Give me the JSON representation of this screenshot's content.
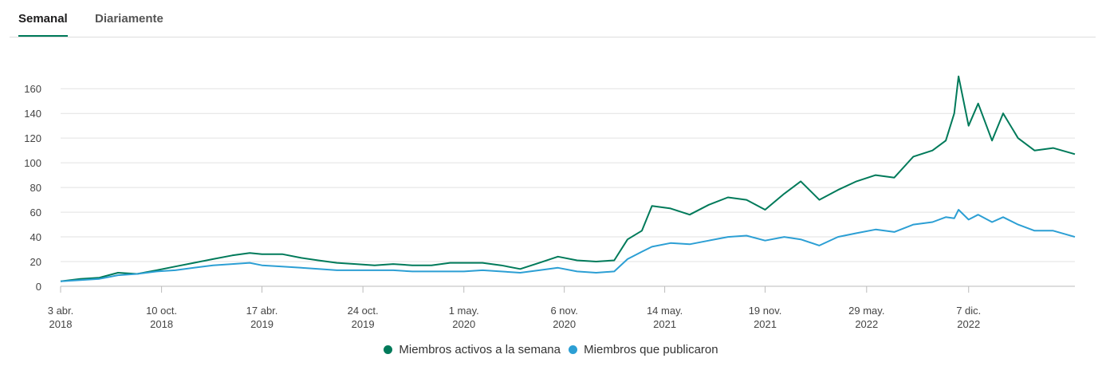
{
  "tabs": [
    {
      "label": "Semanal",
      "active": true
    },
    {
      "label": "Diariamente",
      "active": false
    }
  ],
  "chart_data": {
    "type": "line",
    "title": "",
    "xlabel": "",
    "ylabel": "",
    "ylim": [
      0,
      175
    ],
    "yticks": [
      0,
      20,
      40,
      60,
      80,
      100,
      120,
      140,
      160
    ],
    "xlim": [
      "2018-04-03",
      "2023-06-25"
    ],
    "xticks": [
      {
        "date": "2018-04-03",
        "line1": "3 abr.",
        "line2": "2018"
      },
      {
        "date": "2018-10-10",
        "line1": "10 oct.",
        "line2": "2018"
      },
      {
        "date": "2019-04-17",
        "line1": "17 abr.",
        "line2": "2019"
      },
      {
        "date": "2019-10-24",
        "line1": "24 oct.",
        "line2": "2019"
      },
      {
        "date": "2020-05-01",
        "line1": "1 may.",
        "line2": "2020"
      },
      {
        "date": "2020-11-06",
        "line1": "6 nov.",
        "line2": "2020"
      },
      {
        "date": "2021-05-14",
        "line1": "14 may.",
        "line2": "2021"
      },
      {
        "date": "2021-11-19",
        "line1": "19 nov.",
        "line2": "2021"
      },
      {
        "date": "2022-05-29",
        "line1": "29 may.",
        "line2": "2022"
      },
      {
        "date": "2022-12-07",
        "line1": "7 dic.",
        "line2": "2022"
      }
    ],
    "grid": true,
    "legend_position": "bottom",
    "series": [
      {
        "name": "Miembros activos a la semana",
        "color": "#007a5a",
        "points": [
          [
            "2018-04-03",
            4
          ],
          [
            "2018-05-10",
            6
          ],
          [
            "2018-06-15",
            7
          ],
          [
            "2018-07-20",
            11
          ],
          [
            "2018-08-25",
            10
          ],
          [
            "2018-10-01",
            13
          ],
          [
            "2018-11-05",
            16
          ],
          [
            "2018-12-10",
            19
          ],
          [
            "2019-01-15",
            22
          ],
          [
            "2019-02-20",
            25
          ],
          [
            "2019-03-25",
            27
          ],
          [
            "2019-04-17",
            26
          ],
          [
            "2019-05-25",
            26
          ],
          [
            "2019-06-30",
            23
          ],
          [
            "2019-08-01",
            21
          ],
          [
            "2019-09-05",
            19
          ],
          [
            "2019-10-10",
            18
          ],
          [
            "2019-11-15",
            17
          ],
          [
            "2019-12-20",
            18
          ],
          [
            "2020-01-25",
            17
          ],
          [
            "2020-03-01",
            17
          ],
          [
            "2020-04-05",
            19
          ],
          [
            "2020-05-01",
            19
          ],
          [
            "2020-06-05",
            19
          ],
          [
            "2020-07-10",
            17
          ],
          [
            "2020-08-15",
            14
          ],
          [
            "2020-09-20",
            19
          ],
          [
            "2020-10-25",
            24
          ],
          [
            "2020-11-30",
            21
          ],
          [
            "2021-01-05",
            20
          ],
          [
            "2021-02-08",
            21
          ],
          [
            "2021-03-05",
            38
          ],
          [
            "2021-04-01",
            45
          ],
          [
            "2021-04-20",
            65
          ],
          [
            "2021-05-25",
            63
          ],
          [
            "2021-06-30",
            58
          ],
          [
            "2021-08-05",
            66
          ],
          [
            "2021-09-10",
            72
          ],
          [
            "2021-10-15",
            70
          ],
          [
            "2021-11-19",
            62
          ],
          [
            "2021-12-25",
            75
          ],
          [
            "2022-01-25",
            85
          ],
          [
            "2022-03-01",
            70
          ],
          [
            "2022-04-05",
            78
          ],
          [
            "2022-05-10",
            85
          ],
          [
            "2022-06-15",
            90
          ],
          [
            "2022-07-20",
            88
          ],
          [
            "2022-08-25",
            105
          ],
          [
            "2022-09-30",
            110
          ],
          [
            "2022-10-25",
            118
          ],
          [
            "2022-11-10",
            140
          ],
          [
            "2022-11-18",
            170
          ],
          [
            "2022-12-07",
            130
          ],
          [
            "2022-12-25",
            148
          ],
          [
            "2023-01-20",
            118
          ],
          [
            "2023-02-10",
            140
          ],
          [
            "2023-03-10",
            120
          ],
          [
            "2023-04-10",
            110
          ],
          [
            "2023-05-15",
            112
          ],
          [
            "2023-06-25",
            107
          ]
        ]
      },
      {
        "name": "Miembros que publicaron",
        "color": "#2c9fd4",
        "points": [
          [
            "2018-04-03",
            4
          ],
          [
            "2018-05-10",
            5
          ],
          [
            "2018-06-15",
            6
          ],
          [
            "2018-07-20",
            9
          ],
          [
            "2018-08-25",
            10
          ],
          [
            "2018-10-01",
            12
          ],
          [
            "2018-11-05",
            13
          ],
          [
            "2018-12-10",
            15
          ],
          [
            "2019-01-15",
            17
          ],
          [
            "2019-02-20",
            18
          ],
          [
            "2019-03-25",
            19
          ],
          [
            "2019-04-17",
            17
          ],
          [
            "2019-05-25",
            16
          ],
          [
            "2019-06-30",
            15
          ],
          [
            "2019-08-01",
            14
          ],
          [
            "2019-09-05",
            13
          ],
          [
            "2019-10-10",
            13
          ],
          [
            "2019-11-15",
            13
          ],
          [
            "2019-12-20",
            13
          ],
          [
            "2020-01-25",
            12
          ],
          [
            "2020-03-01",
            12
          ],
          [
            "2020-04-05",
            12
          ],
          [
            "2020-05-01",
            12
          ],
          [
            "2020-06-05",
            13
          ],
          [
            "2020-07-10",
            12
          ],
          [
            "2020-08-15",
            11
          ],
          [
            "2020-09-20",
            13
          ],
          [
            "2020-10-25",
            15
          ],
          [
            "2020-11-30",
            12
          ],
          [
            "2021-01-05",
            11
          ],
          [
            "2021-02-08",
            12
          ],
          [
            "2021-03-05",
            22
          ],
          [
            "2021-04-01",
            28
          ],
          [
            "2021-04-20",
            32
          ],
          [
            "2021-05-25",
            35
          ],
          [
            "2021-06-30",
            34
          ],
          [
            "2021-08-05",
            37
          ],
          [
            "2021-09-10",
            40
          ],
          [
            "2021-10-15",
            41
          ],
          [
            "2021-11-19",
            37
          ],
          [
            "2021-12-25",
            40
          ],
          [
            "2022-01-25",
            38
          ],
          [
            "2022-03-01",
            33
          ],
          [
            "2022-04-05",
            40
          ],
          [
            "2022-05-10",
            43
          ],
          [
            "2022-06-15",
            46
          ],
          [
            "2022-07-20",
            44
          ],
          [
            "2022-08-25",
            50
          ],
          [
            "2022-09-30",
            52
          ],
          [
            "2022-10-25",
            56
          ],
          [
            "2022-11-10",
            55
          ],
          [
            "2022-11-18",
            62
          ],
          [
            "2022-12-07",
            54
          ],
          [
            "2022-12-25",
            58
          ],
          [
            "2023-01-20",
            52
          ],
          [
            "2023-02-10",
            56
          ],
          [
            "2023-03-10",
            50
          ],
          [
            "2023-04-10",
            45
          ],
          [
            "2023-05-15",
            45
          ],
          [
            "2023-06-25",
            40
          ]
        ]
      }
    ]
  }
}
